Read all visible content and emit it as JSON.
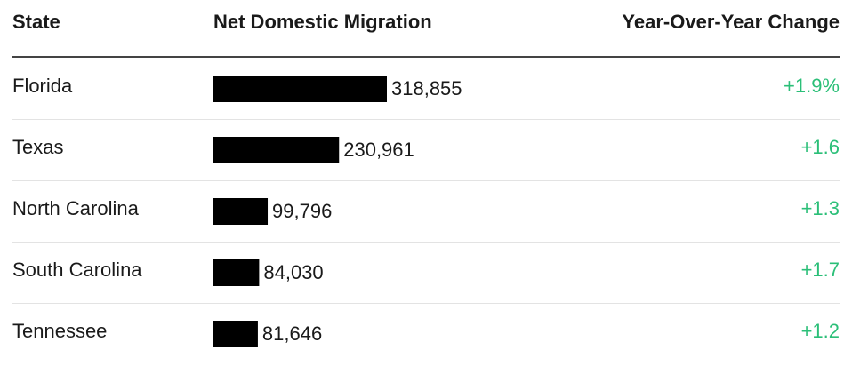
{
  "chart_data": {
    "type": "bar",
    "column_headers": [
      "State",
      "Net Domestic Migration",
      "Year-Over-Year Change"
    ],
    "categories": [
      "Florida",
      "Texas",
      "North Carolina",
      "South Carolina",
      "Tennessee"
    ],
    "values": [
      318855,
      230961,
      99796,
      84030,
      81646
    ],
    "value_labels": [
      "318,855",
      "230,961",
      "99,796",
      "84,030",
      "81,646"
    ],
    "yoy_change": [
      "+1.9%",
      "+1.6",
      "+1.3",
      "+1.7",
      "+1.2"
    ],
    "color": "#000000",
    "change_color": "#2bbf78"
  }
}
